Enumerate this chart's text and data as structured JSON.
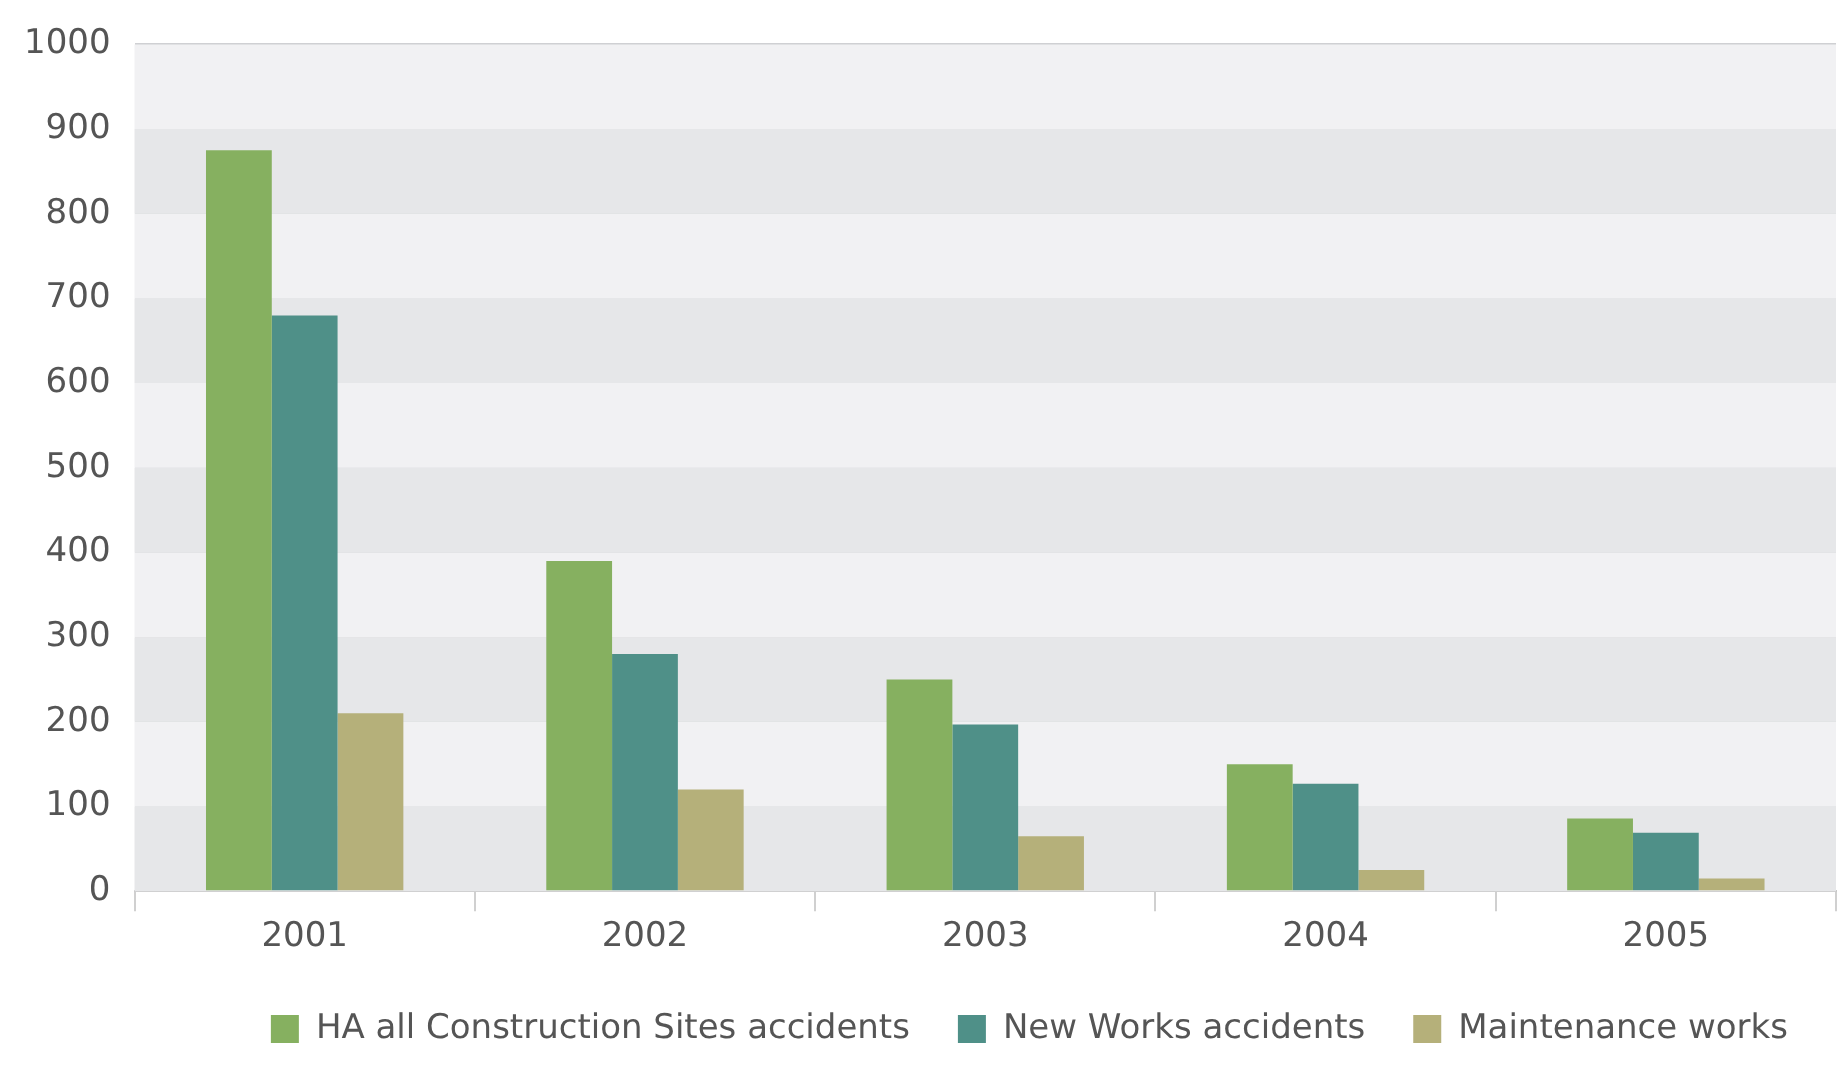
{
  "chart_data": {
    "type": "bar",
    "categories": [
      "2001",
      "2002",
      "2003",
      "2004",
      "2005"
    ],
    "series": [
      {
        "name": "HA all Construction Sites accidents",
        "color": "#86b060",
        "values": [
          875,
          390,
          250,
          150,
          86
        ]
      },
      {
        "name": "New Works accidents",
        "color": "#4f9088",
        "values": [
          680,
          280,
          197,
          127,
          69
        ]
      },
      {
        "name": "Maintenance works",
        "color": "#b5b07a",
        "values": [
          210,
          120,
          65,
          25,
          15
        ]
      }
    ],
    "ylim": [
      0,
      1000
    ],
    "yticks": [
      0,
      100,
      200,
      300,
      400,
      500,
      600,
      700,
      800,
      900,
      1000
    ],
    "grid": "y",
    "legend": "bottom"
  }
}
